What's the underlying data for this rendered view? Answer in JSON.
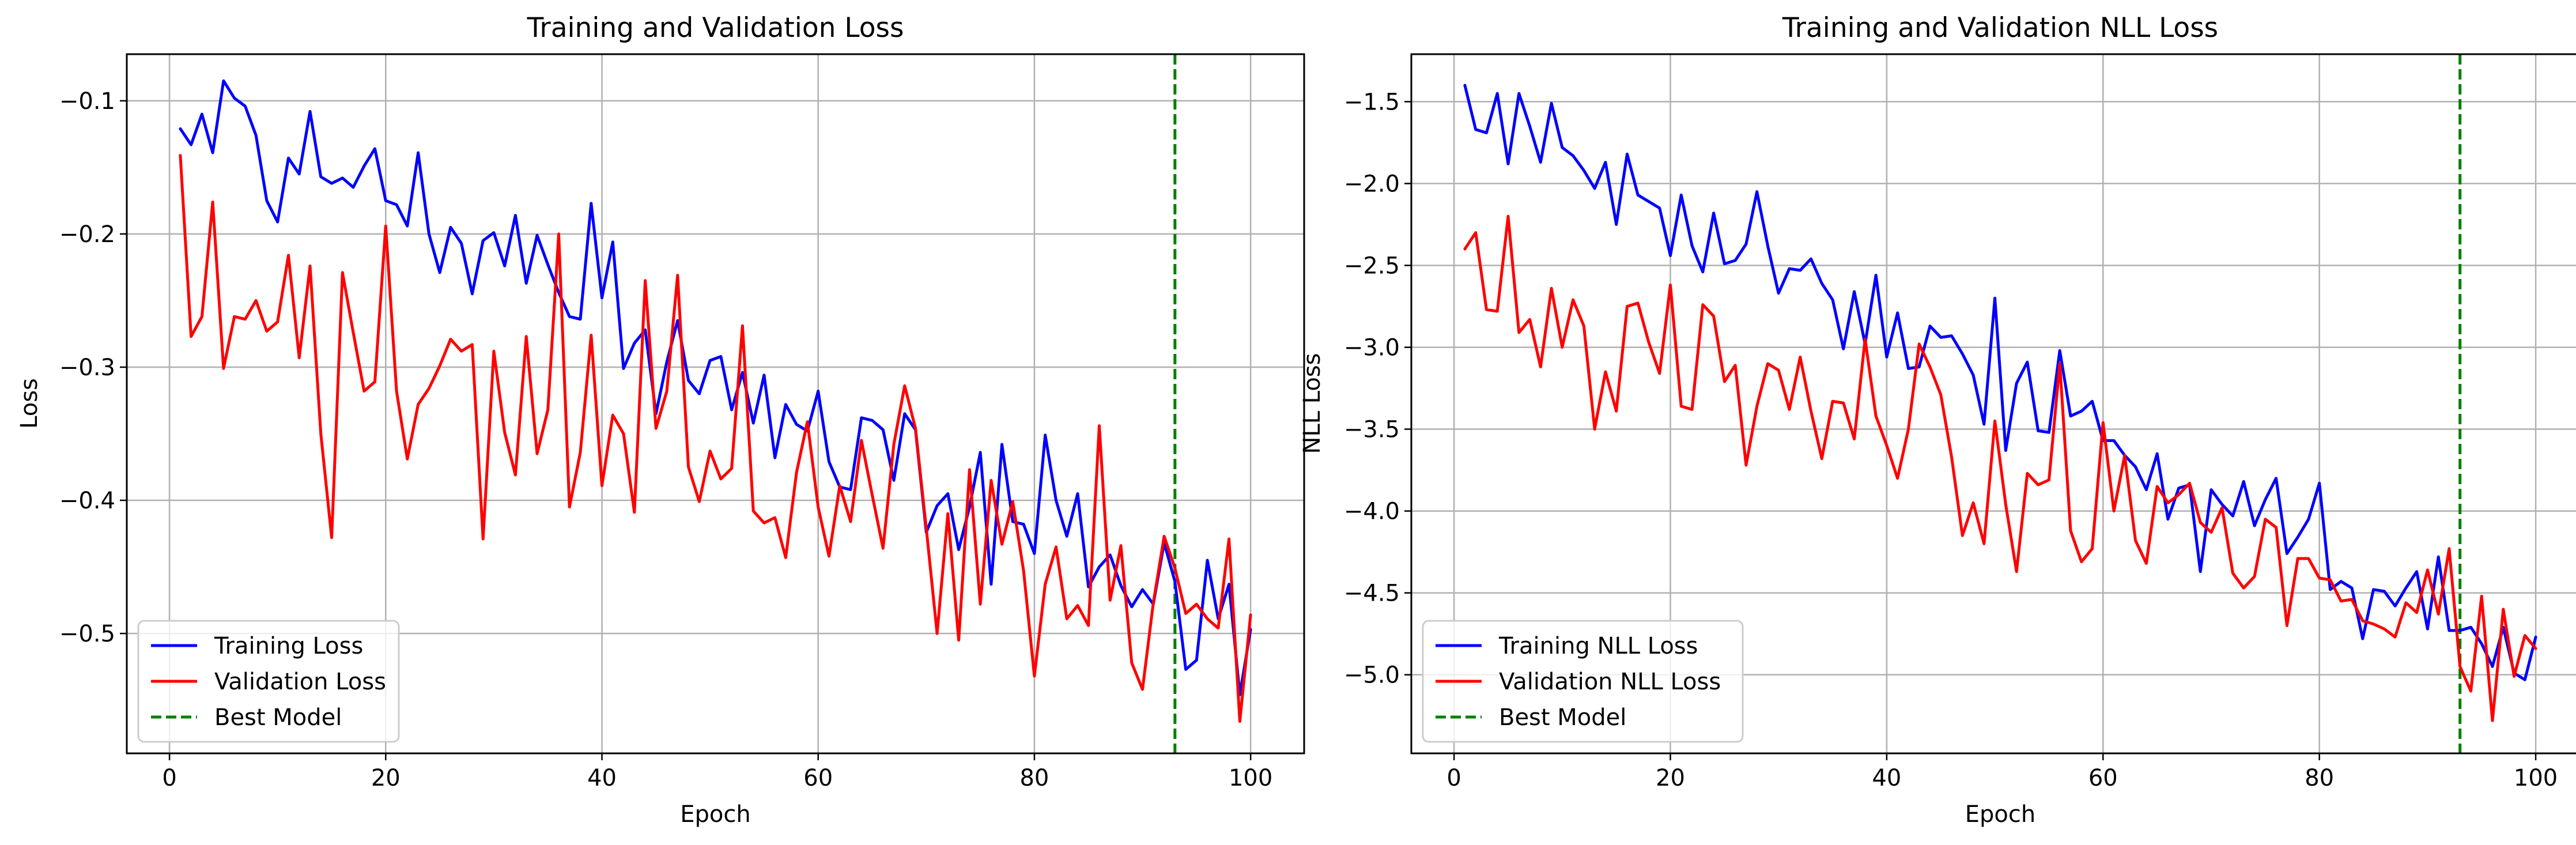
{
  "chart_data": [
    {
      "type": "line",
      "title": "Training and Validation Loss",
      "xlabel": "Epoch",
      "ylabel": "Loss",
      "xlim": [
        -3.95,
        104.95
      ],
      "ylim": [
        -0.59,
        -0.065
      ],
      "xticks": [
        0,
        20,
        40,
        60,
        80,
        100
      ],
      "yticks": [
        -0.5,
        -0.4,
        -0.3,
        -0.2,
        -0.1
      ],
      "xtick_labels": [
        "0",
        "20",
        "40",
        "60",
        "80",
        "100"
      ],
      "ytick_labels": [
        "−0.5",
        "−0.4",
        "−0.3",
        "−0.2",
        "−0.1"
      ],
      "grid": true,
      "legend_position": "lower-left",
      "vline": {
        "name": "Best Model",
        "x": 93,
        "color": "#008000",
        "style": "dashed"
      },
      "series": [
        {
          "name": "Training Loss",
          "color": "#0000ff",
          "x": [
            1,
            2,
            3,
            4,
            5,
            6,
            7,
            8,
            9,
            10,
            11,
            12,
            13,
            14,
            15,
            16,
            17,
            18,
            19,
            20,
            21,
            22,
            23,
            24,
            25,
            26,
            27,
            28,
            29,
            30,
            31,
            32,
            33,
            34,
            35,
            36,
            37,
            38,
            39,
            40,
            41,
            42,
            43,
            44,
            45,
            46,
            47,
            48,
            49,
            50,
            51,
            52,
            53,
            54,
            55,
            56,
            57,
            58,
            59,
            60,
            61,
            62,
            63,
            64,
            65,
            66,
            67,
            68,
            69,
            70,
            71,
            72,
            73,
            74,
            75,
            76,
            77,
            78,
            79,
            80,
            81,
            82,
            83,
            84,
            85,
            86,
            87,
            88,
            89,
            90,
            91,
            92,
            93,
            94,
            95,
            96,
            97,
            98,
            99,
            100
          ],
          "values": [
            -0.121,
            -0.133,
            -0.11,
            -0.139,
            -0.085,
            -0.098,
            -0.104,
            -0.126,
            -0.175,
            -0.191,
            -0.143,
            -0.155,
            -0.108,
            -0.157,
            -0.162,
            -0.158,
            -0.165,
            -0.149,
            -0.136,
            -0.175,
            -0.178,
            -0.194,
            -0.139,
            -0.2,
            -0.229,
            -0.195,
            -0.207,
            -0.245,
            -0.205,
            -0.199,
            -0.224,
            -0.186,
            -0.237,
            -0.201,
            -0.223,
            -0.244,
            -0.262,
            -0.264,
            -0.177,
            -0.248,
            -0.206,
            -0.301,
            -0.282,
            -0.272,
            -0.335,
            -0.296,
            -0.265,
            -0.31,
            -0.32,
            -0.295,
            -0.292,
            -0.332,
            -0.304,
            -0.342,
            -0.306,
            -0.368,
            -0.328,
            -0.343,
            -0.348,
            -0.318,
            -0.371,
            -0.39,
            -0.392,
            -0.338,
            -0.34,
            -0.347,
            -0.385,
            -0.335,
            -0.347,
            -0.424,
            -0.404,
            -0.395,
            -0.437,
            -0.405,
            -0.364,
            -0.463,
            -0.358,
            -0.416,
            -0.418,
            -0.44,
            -0.351,
            -0.4,
            -0.427,
            -0.395,
            -0.465,
            -0.45,
            -0.441,
            -0.464,
            -0.48,
            -0.467,
            -0.478,
            -0.432,
            -0.461,
            -0.527,
            -0.52,
            -0.445,
            -0.489,
            -0.463,
            -0.546,
            -0.497
          ]
        },
        {
          "name": "Validation Loss",
          "color": "#ff0000",
          "x": [
            1,
            2,
            3,
            4,
            5,
            6,
            7,
            8,
            9,
            10,
            11,
            12,
            13,
            14,
            15,
            16,
            17,
            18,
            19,
            20,
            21,
            22,
            23,
            24,
            25,
            26,
            27,
            28,
            29,
            30,
            31,
            32,
            33,
            34,
            35,
            36,
            37,
            38,
            39,
            40,
            41,
            42,
            43,
            44,
            45,
            46,
            47,
            48,
            49,
            50,
            51,
            52,
            53,
            54,
            55,
            56,
            57,
            58,
            59,
            60,
            61,
            62,
            63,
            64,
            65,
            66,
            67,
            68,
            69,
            70,
            71,
            72,
            73,
            74,
            75,
            76,
            77,
            78,
            79,
            80,
            81,
            82,
            83,
            84,
            85,
            86,
            87,
            88,
            89,
            90,
            91,
            92,
            93,
            94,
            95,
            96,
            97,
            98,
            99,
            100
          ],
          "values": [
            -0.141,
            -0.277,
            -0.262,
            -0.176,
            -0.301,
            -0.262,
            -0.264,
            -0.25,
            -0.273,
            -0.266,
            -0.216,
            -0.293,
            -0.224,
            -0.35,
            -0.428,
            -0.229,
            -0.274,
            -0.318,
            -0.311,
            -0.194,
            -0.318,
            -0.369,
            -0.328,
            -0.316,
            -0.299,
            -0.279,
            -0.288,
            -0.283,
            -0.429,
            -0.288,
            -0.349,
            -0.381,
            -0.277,
            -0.365,
            -0.332,
            -0.2,
            -0.405,
            -0.364,
            -0.276,
            -0.389,
            -0.336,
            -0.35,
            -0.409,
            -0.235,
            -0.346,
            -0.318,
            -0.231,
            -0.375,
            -0.401,
            -0.363,
            -0.384,
            -0.376,
            -0.269,
            -0.408,
            -0.417,
            -0.413,
            -0.443,
            -0.379,
            -0.341,
            -0.405,
            -0.442,
            -0.389,
            -0.416,
            -0.355,
            -0.396,
            -0.436,
            -0.358,
            -0.314,
            -0.346,
            -0.421,
            -0.5,
            -0.41,
            -0.505,
            -0.377,
            -0.478,
            -0.385,
            -0.433,
            -0.401,
            -0.453,
            -0.532,
            -0.463,
            -0.435,
            -0.489,
            -0.479,
            -0.494,
            -0.344,
            -0.475,
            -0.434,
            -0.522,
            -0.542,
            -0.477,
            -0.427,
            -0.451,
            -0.485,
            -0.478,
            -0.489,
            -0.496,
            -0.429,
            -0.566,
            -0.486
          ]
        }
      ]
    },
    {
      "type": "line",
      "title": "Training and Validation NLL Loss",
      "xlabel": "Epoch",
      "ylabel": "NLL Loss",
      "xlim": [
        -3.95,
        104.95
      ],
      "ylim": [
        -5.48,
        -1.21
      ],
      "xticks": [
        0,
        20,
        40,
        60,
        80,
        100
      ],
      "yticks": [
        -5.0,
        -4.5,
        -4.0,
        -3.5,
        -3.0,
        -2.5,
        -2.0,
        -1.5
      ],
      "xtick_labels": [
        "0",
        "20",
        "40",
        "60",
        "80",
        "100"
      ],
      "ytick_labels": [
        "−5.0",
        "−4.5",
        "−4.0",
        "−3.5",
        "−3.0",
        "−2.5",
        "−2.0",
        "−1.5"
      ],
      "grid": true,
      "legend_position": "lower-left",
      "vline": {
        "name": "Best Model",
        "x": 93,
        "color": "#008000",
        "style": "dashed"
      },
      "series": [
        {
          "name": "Training NLL Loss",
          "color": "#0000ff",
          "x": [
            1,
            2,
            3,
            4,
            5,
            6,
            7,
            8,
            9,
            10,
            11,
            12,
            13,
            14,
            15,
            16,
            17,
            18,
            19,
            20,
            21,
            22,
            23,
            24,
            25,
            26,
            27,
            28,
            29,
            30,
            31,
            32,
            33,
            34,
            35,
            36,
            37,
            38,
            39,
            40,
            41,
            42,
            43,
            44,
            45,
            46,
            47,
            48,
            49,
            50,
            51,
            52,
            53,
            54,
            55,
            56,
            57,
            58,
            59,
            60,
            61,
            62,
            63,
            64,
            65,
            66,
            67,
            68,
            69,
            70,
            71,
            72,
            73,
            74,
            75,
            76,
            77,
            78,
            79,
            80,
            81,
            82,
            83,
            84,
            85,
            86,
            87,
            88,
            89,
            90,
            91,
            92,
            93,
            94,
            95,
            96,
            97,
            98,
            99,
            100
          ],
          "values": [
            -1.4,
            -1.67,
            -1.69,
            -1.45,
            -1.88,
            -1.45,
            -1.65,
            -1.87,
            -1.51,
            -1.78,
            -1.83,
            -1.92,
            -2.03,
            -1.87,
            -2.25,
            -1.82,
            -2.07,
            -2.11,
            -2.15,
            -2.44,
            -2.07,
            -2.38,
            -2.54,
            -2.18,
            -2.49,
            -2.47,
            -2.37,
            -2.05,
            -2.38,
            -2.67,
            -2.52,
            -2.53,
            -2.46,
            -2.61,
            -2.71,
            -3.01,
            -2.66,
            -2.98,
            -2.56,
            -3.06,
            -2.79,
            -3.13,
            -3.12,
            -2.87,
            -2.94,
            -2.93,
            -3.04,
            -3.17,
            -3.47,
            -2.7,
            -3.63,
            -3.22,
            -3.09,
            -3.51,
            -3.52,
            -3.02,
            -3.42,
            -3.39,
            -3.33,
            -3.57,
            -3.57,
            -3.66,
            -3.73,
            -3.87,
            -3.65,
            -4.05,
            -3.86,
            -3.84,
            -4.37,
            -3.87,
            -3.96,
            -4.03,
            -3.82,
            -4.09,
            -3.93,
            -3.8,
            -4.26,
            -4.16,
            -4.05,
            -3.83,
            -4.48,
            -4.43,
            -4.47,
            -4.78,
            -4.48,
            -4.49,
            -4.58,
            -4.47,
            -4.37,
            -4.72,
            -4.28,
            -4.73,
            -4.73,
            -4.71,
            -4.81,
            -4.95,
            -4.71,
            -4.99,
            -5.03,
            -4.77
          ]
        },
        {
          "name": "Validation NLL Loss",
          "color": "#ff0000",
          "x": [
            1,
            2,
            3,
            4,
            5,
            6,
            7,
            8,
            9,
            10,
            11,
            12,
            13,
            14,
            15,
            16,
            17,
            18,
            19,
            20,
            21,
            22,
            23,
            24,
            25,
            26,
            27,
            28,
            29,
            30,
            31,
            32,
            33,
            34,
            35,
            36,
            37,
            38,
            39,
            40,
            41,
            42,
            43,
            44,
            45,
            46,
            47,
            48,
            49,
            50,
            51,
            52,
            53,
            54,
            55,
            56,
            57,
            58,
            59,
            60,
            61,
            62,
            63,
            64,
            65,
            66,
            67,
            68,
            69,
            70,
            71,
            72,
            73,
            74,
            75,
            76,
            77,
            78,
            79,
            80,
            81,
            82,
            83,
            84,
            85,
            86,
            87,
            88,
            89,
            90,
            91,
            92,
            93,
            94,
            95,
            96,
            97,
            98,
            99,
            100
          ],
          "values": [
            -2.4,
            -2.3,
            -2.77,
            -2.78,
            -2.2,
            -2.91,
            -2.83,
            -3.12,
            -2.64,
            -3,
            -2.71,
            -2.87,
            -3.5,
            -3.15,
            -3.39,
            -2.75,
            -2.73,
            -2.97,
            -3.16,
            -2.62,
            -3.36,
            -3.38,
            -2.74,
            -2.81,
            -3.21,
            -3.11,
            -3.72,
            -3.36,
            -3.1,
            -3.14,
            -3.38,
            -3.06,
            -3.39,
            -3.68,
            -3.33,
            -3.34,
            -3.56,
            -2.95,
            -3.42,
            -3.6,
            -3.8,
            -3.5,
            -2.98,
            -3.12,
            -3.29,
            -3.67,
            -4.15,
            -3.95,
            -4.2,
            -3.45,
            -3.96,
            -4.37,
            -3.77,
            -3.84,
            -3.81,
            -3.1,
            -4.12,
            -4.31,
            -4.23,
            -3.46,
            -4,
            -3.66,
            -4.18,
            -4.32,
            -3.85,
            -3.95,
            -3.9,
            -3.83,
            -4.07,
            -4.13,
            -3.98,
            -4.38,
            -4.47,
            -4.4,
            -4.05,
            -4.1,
            -4.7,
            -4.29,
            -4.29,
            -4.41,
            -4.42,
            -4.55,
            -4.54,
            -4.67,
            -4.69,
            -4.72,
            -4.77,
            -4.56,
            -4.62,
            -4.36,
            -4.63,
            -4.23,
            -4.95,
            -5.1,
            -4.52,
            -5.28,
            -4.6,
            -5.01,
            -4.76,
            -4.84
          ]
        }
      ]
    }
  ]
}
